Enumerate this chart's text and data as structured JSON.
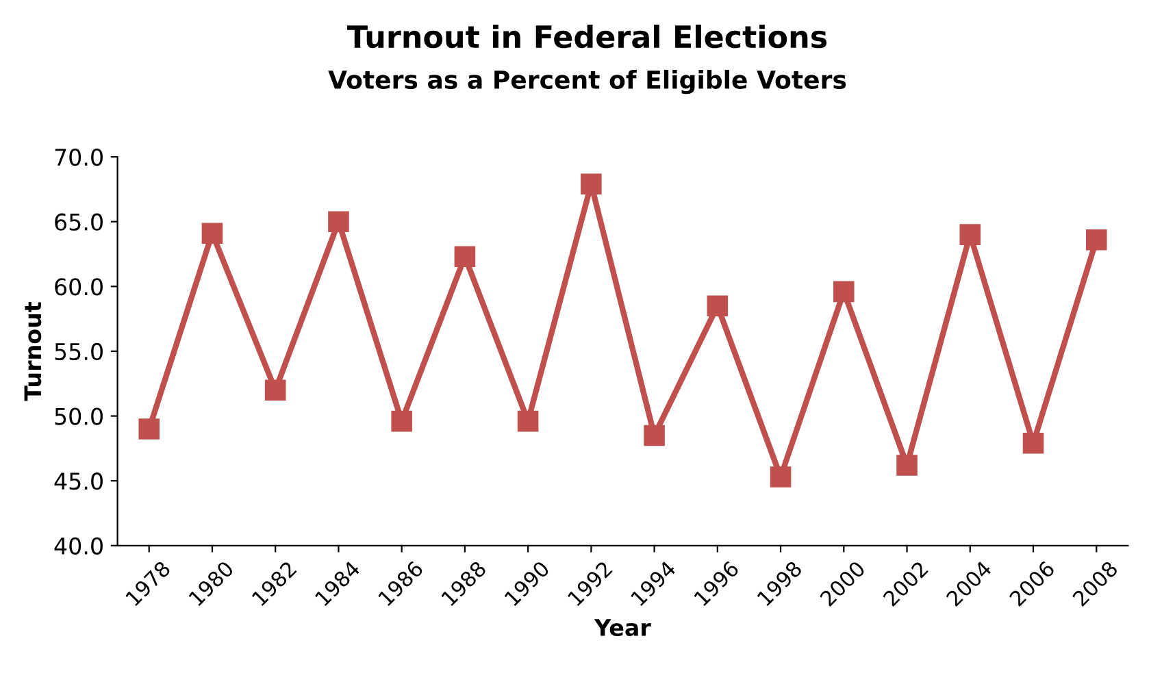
{
  "chart_data": {
    "type": "line",
    "title": "Turnout in Federal Elections",
    "subtitle": "Voters as a Percent of Eligible Voters",
    "xlabel": "Year",
    "ylabel": "Turnout",
    "categories": [
      "1978",
      "1980",
      "1982",
      "1984",
      "1986",
      "1988",
      "1990",
      "1992",
      "1994",
      "1996",
      "1998",
      "2000",
      "2002",
      "2004",
      "2006",
      "2008"
    ],
    "series": [
      {
        "color": "#c0504d",
        "values": [
          49.0,
          64.1,
          52.0,
          65.0,
          49.6,
          62.3,
          49.6,
          67.9,
          48.5,
          58.5,
          45.3,
          59.6,
          46.2,
          64.0,
          47.9,
          63.6
        ]
      }
    ],
    "ylim": [
      40,
      70
    ],
    "yticks": [
      {
        "value": 40,
        "label": "40.0"
      },
      {
        "value": 45,
        "label": "45.0"
      },
      {
        "value": 50,
        "label": "50.0"
      },
      {
        "value": 55,
        "label": "55.0"
      },
      {
        "value": 60,
        "label": "60.0"
      },
      {
        "value": 65,
        "label": "65.0"
      },
      {
        "value": 70,
        "label": "70.0"
      }
    ],
    "grid": false,
    "legend": false,
    "marker": "square",
    "line_style": "solid"
  }
}
